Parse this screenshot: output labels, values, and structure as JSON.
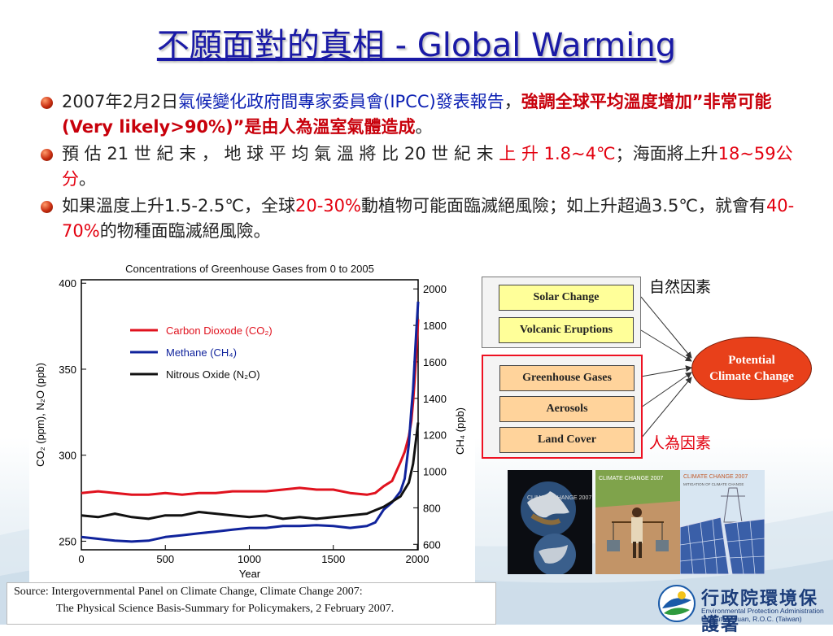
{
  "slide": {
    "title": "不願面對的真相 - Global Warming",
    "bullets": [
      {
        "p1": "2007年2月2日",
        "p2": "氣候變化政府間專家委員會(IPCC)發表報告",
        "p3": "，",
        "p4": "強調全球平均溫度增加”非常可能(Very likely>90%)”是由人為溫室氣體造成",
        "p5": "。"
      },
      {
        "p1": "預 估 21 世 紀 末 ， 地 球 平 均 氣 溫 將 比 20 世 紀 末",
        "p2": "上 升 1.8~4℃",
        "p3": "；海面將上升",
        "p4": "18~59公分",
        "p5": "。"
      },
      {
        "p1": "如果溫度上升1.5-2.5℃，全球",
        "p2": "20-30%",
        "p3": "動植物可能面臨滅絕風險；如上升超過3.5℃，就會有",
        "p4": "40-70%",
        "p5": "的物種面臨滅絕風險。"
      }
    ]
  },
  "diagram": {
    "natural_label": "自然因素",
    "human_label": "人為因素",
    "natural_factors": [
      "Solar Change",
      "Volcanic Eruptions"
    ],
    "human_factors": [
      "Greenhouse Gases",
      "Aerosols",
      "Land Cover"
    ],
    "outcome_line1": "Potential",
    "outcome_line2": "Climate Change"
  },
  "covers": [
    {
      "text": "CLIMATE CHANGE 2007"
    },
    {
      "text": "CLIMATE CHANGE 2007"
    },
    {
      "text": "CLIMATE CHANGE 2007",
      "subtitle": "MITIGATION OF CLIMATE CHANGE"
    }
  ],
  "source": {
    "line1": "Source: Intergovernmental Panel on Climate Change, Climate Change 2007:",
    "line2": "The Physical Science Basis-Summary for Policymakers, 2 February 2007."
  },
  "logo": {
    "zh": "行政院環境保護署",
    "en1": "Environmental Protection Administration",
    "en2": "Executive Yuan, R.O.C. (Taiwan)"
  },
  "colors": {
    "title": "#1a1aa6",
    "co2": "#e0121e",
    "ch4": "#10239c",
    "n2o": "#111111"
  },
  "chart_data": {
    "type": "line",
    "title": "Concentrations of Greenhouse Gases from 0 to 2005",
    "xlabel": "Year",
    "ylabel_left": "CO₂ (ppm), N₂O (ppb)",
    "ylabel_right": "CH₄ (ppb)",
    "xlim": [
      0,
      2005
    ],
    "ylim_left": [
      245,
      402
    ],
    "ylim_right": [
      570,
      2050
    ],
    "x_ticks": [
      0,
      500,
      1000,
      1500,
      2000
    ],
    "y_left_ticks": [
      250,
      300,
      350,
      400
    ],
    "y_right_ticks": [
      600,
      800,
      1000,
      1200,
      1400,
      1600,
      1800,
      2000
    ],
    "legend": [
      "Carbon Dioxode (CO₂)",
      "Methane (CH₄)",
      "Nitrous Oxide (N₂O)"
    ],
    "series": [
      {
        "name": "Carbon Dioxode (CO₂)",
        "axis": "left",
        "x": [
          0,
          100,
          200,
          300,
          400,
          500,
          600,
          700,
          800,
          900,
          1000,
          1100,
          1200,
          1300,
          1400,
          1500,
          1600,
          1700,
          1750,
          1800,
          1850,
          1900,
          1925,
          1950,
          1965,
          1975,
          1985,
          1995,
          2005
        ],
        "y": [
          278,
          279,
          278,
          277,
          277,
          278,
          277,
          278,
          278,
          279,
          279,
          279,
          280,
          281,
          280,
          280,
          278,
          277,
          278,
          282,
          285,
          296,
          302,
          311,
          320,
          331,
          345,
          360,
          379
        ]
      },
      {
        "name": "Methane (CH₄)",
        "axis": "right",
        "x": [
          0,
          100,
          200,
          300,
          400,
          500,
          600,
          700,
          800,
          900,
          1000,
          1100,
          1200,
          1300,
          1400,
          1500,
          1600,
          1700,
          1750,
          1800,
          1850,
          1875,
          1900,
          1925,
          1950,
          1965,
          1975,
          1985,
          1995,
          2005
        ],
        "y": [
          640,
          630,
          620,
          615,
          620,
          640,
          650,
          660,
          670,
          680,
          690,
          690,
          700,
          700,
          705,
          700,
          690,
          700,
          720,
          790,
          830,
          860,
          890,
          960,
          1150,
          1340,
          1450,
          1620,
          1780,
          1930
        ]
      },
      {
        "name": "Nitrous Oxide (N₂O)",
        "axis": "left",
        "x": [
          0,
          100,
          200,
          300,
          400,
          500,
          600,
          700,
          800,
          900,
          1000,
          1100,
          1200,
          1300,
          1400,
          1500,
          1600,
          1700,
          1750,
          1800,
          1850,
          1900,
          1950,
          1975,
          2005
        ],
        "y": [
          265,
          264,
          266,
          264,
          263,
          265,
          265,
          267,
          266,
          265,
          264,
          265,
          263,
          264,
          263,
          264,
          265,
          266,
          268,
          270,
          273,
          276,
          284,
          295,
          319
        ]
      }
    ]
  }
}
